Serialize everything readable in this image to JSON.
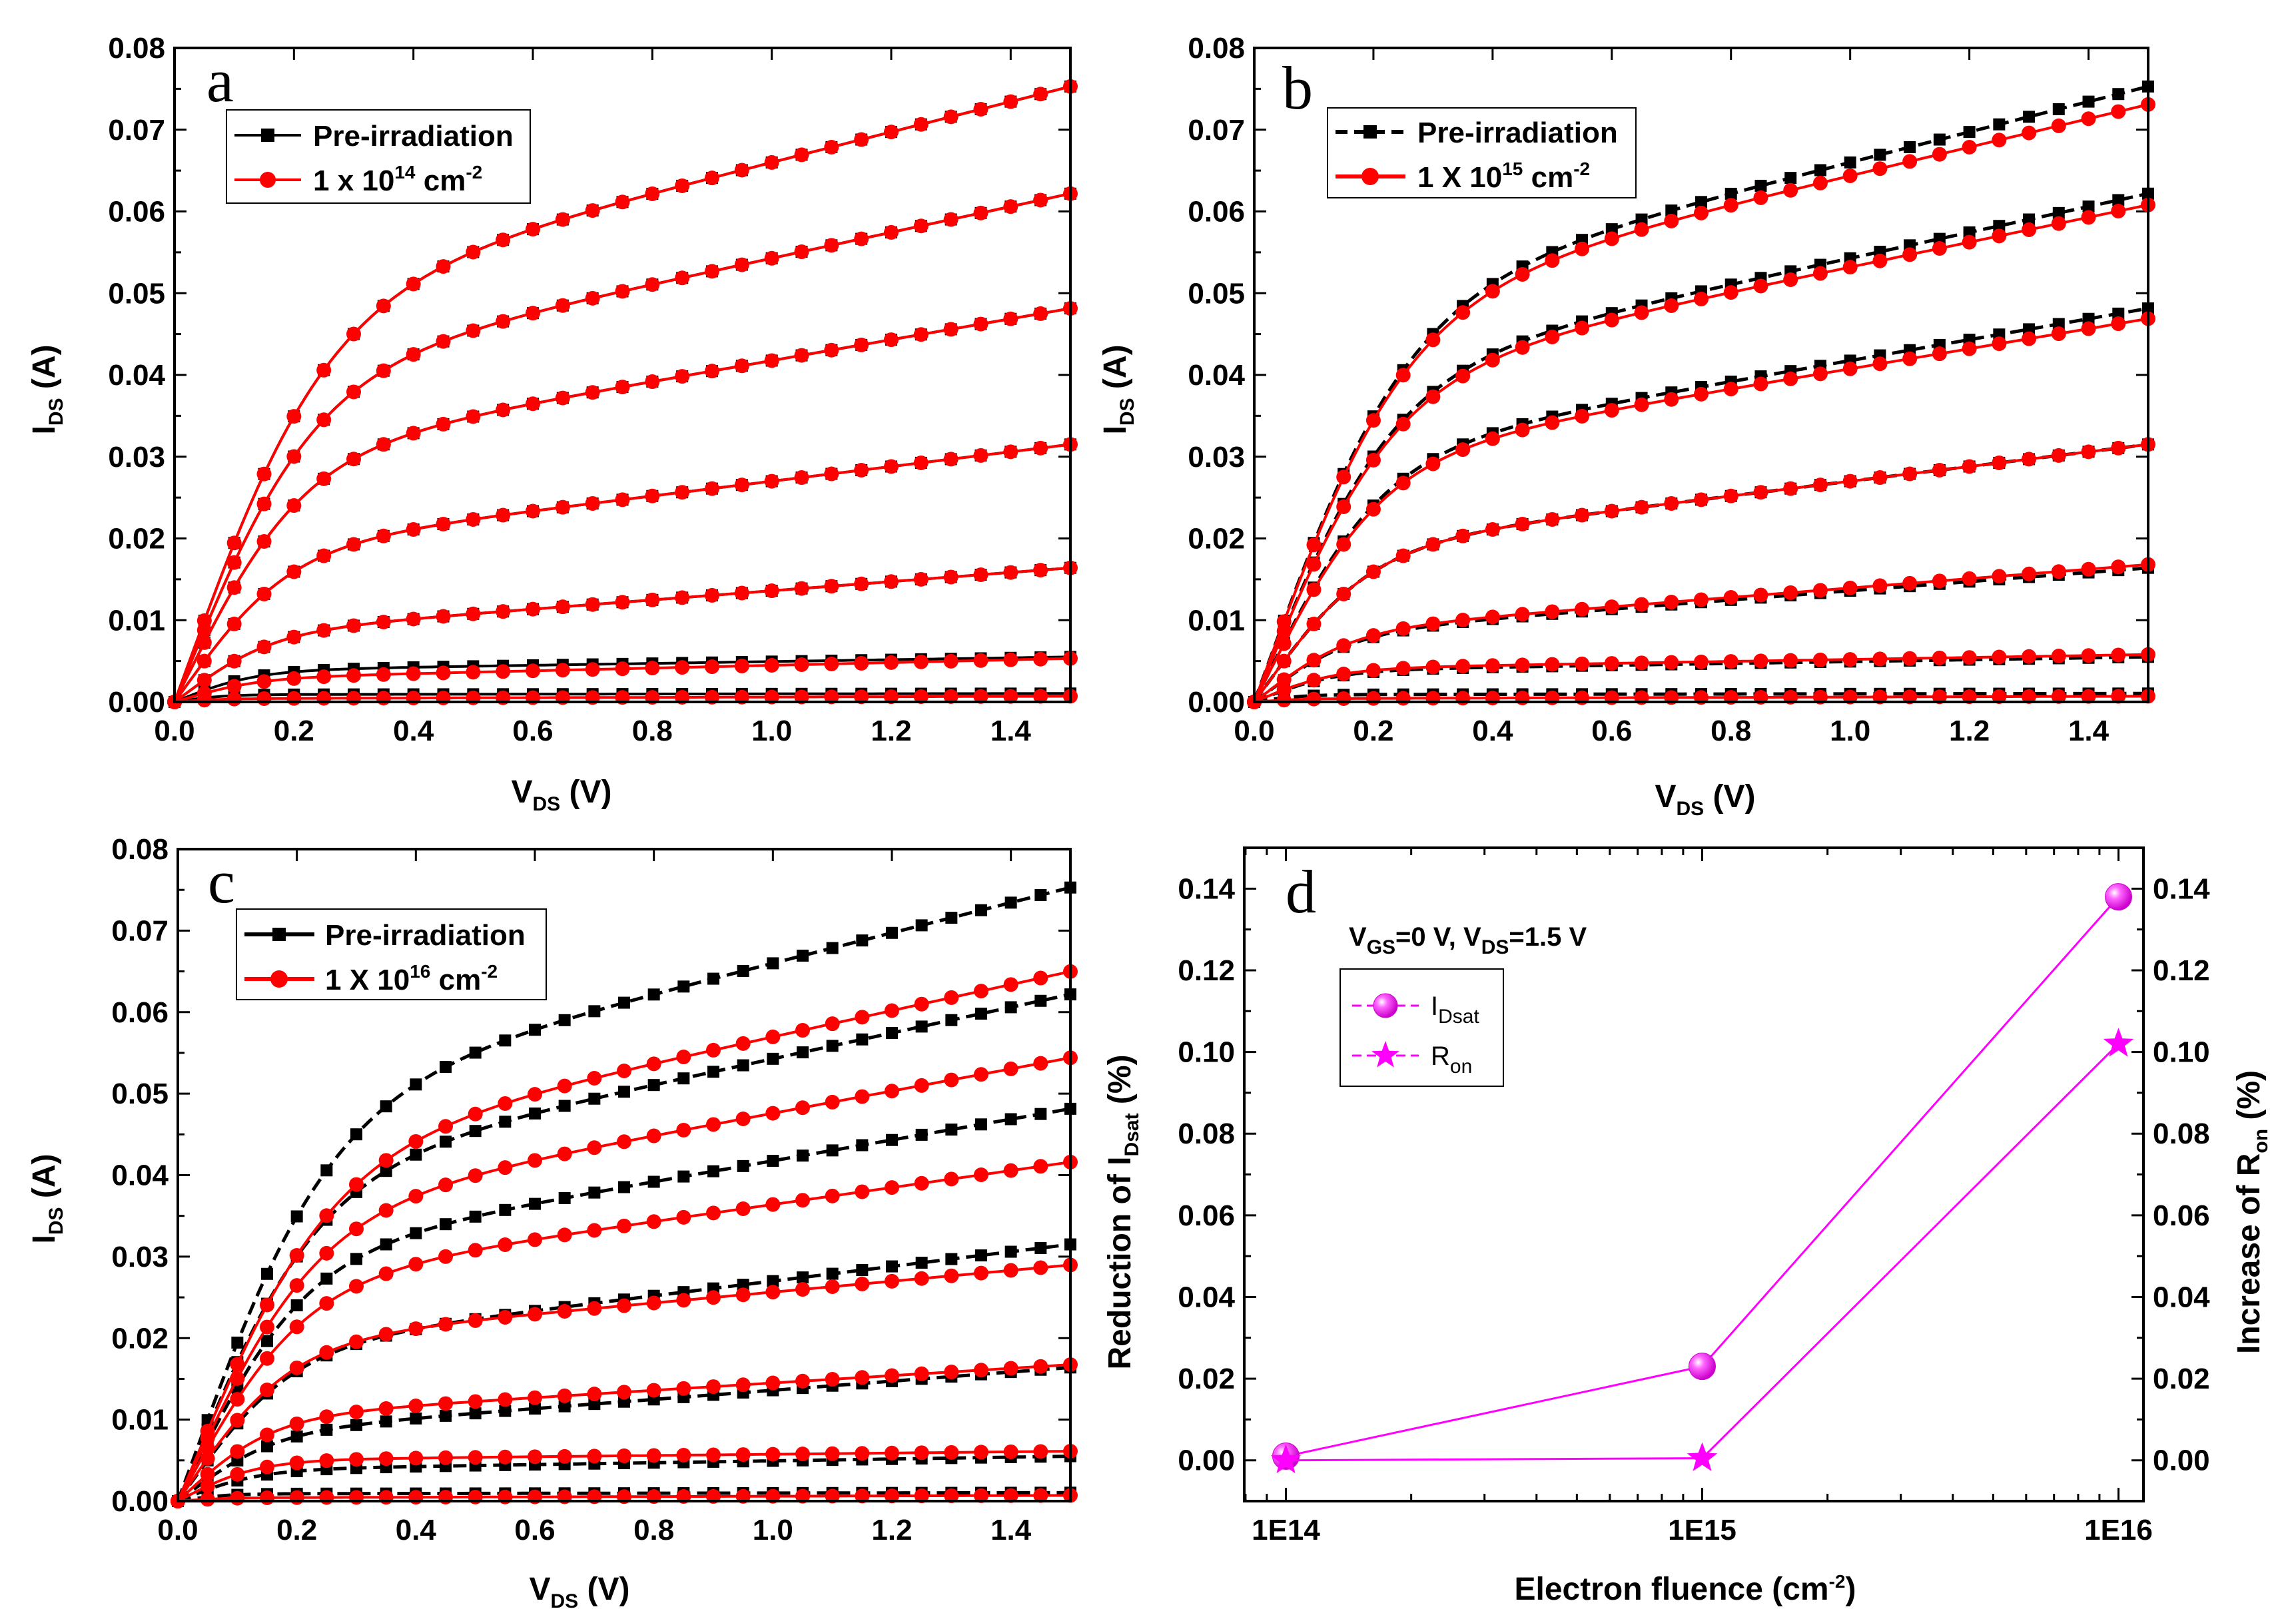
{
  "colors": {
    "pre": "#000000",
    "post": "#ff0000",
    "magenta": "#ff00ff",
    "marker_fill": "#ff33ff"
  },
  "chart_data": [
    {
      "id": "a",
      "type": "line",
      "panel_label": "a",
      "xlabel_main": "V",
      "xlabel_sub": "DS",
      "xlabel_unit": " (V)",
      "ylabel_main": "I",
      "ylabel_sub": "DS",
      "ylabel_unit": " (A)",
      "xlim": [
        0,
        1.5
      ],
      "ylim": [
        0,
        0.08
      ],
      "xticks": [
        "0.0",
        "0.2",
        "0.4",
        "0.6",
        "0.8",
        "1.0",
        "1.2",
        "1.4"
      ],
      "yticks": [
        "0.00",
        "0.01",
        "0.02",
        "0.03",
        "0.04",
        "0.05",
        "0.06",
        "0.07",
        "0.08"
      ],
      "legend": {
        "pre": "Pre-irradiation",
        "post_prefix": "1 x 10",
        "post_exp": "14",
        "post_unit": " cm",
        "post_unit_exp": "-2"
      },
      "legend_position": "top-left",
      "curve_model": "I = Isat*tanh(V/Vk)*(1+lambda*V)",
      "series": [
        {
          "name": "Pre-irradiation",
          "style": "solid",
          "curves": [
            [
              0.0475,
              0.24,
              0.39
            ],
            [
              0.0385,
              0.22,
              0.41
            ],
            [
              0.029,
              0.2,
              0.44
            ],
            [
              0.018,
              0.18,
              0.5
            ],
            [
              0.008,
              0.15,
              0.7
            ],
            [
              0.0038,
              0.13,
              0.3
            ],
            [
              0.0009,
              0.08,
              0.1
            ]
          ]
        },
        {
          "name": "1 x 10^14 cm^-2",
          "style": "solid",
          "curves": [
            [
              0.0475,
              0.24,
              0.39
            ],
            [
              0.0385,
              0.22,
              0.41
            ],
            [
              0.029,
              0.2,
              0.44
            ],
            [
              0.018,
              0.18,
              0.5
            ],
            [
              0.008,
              0.15,
              0.7
            ],
            [
              0.0028,
              0.13,
              0.6
            ],
            [
              0.0004,
              0.08,
              0.5
            ]
          ]
        }
      ]
    },
    {
      "id": "b",
      "type": "line",
      "panel_label": "b",
      "xlabel_main": "V",
      "xlabel_sub": "DS",
      "xlabel_unit": " (V)",
      "ylabel_main": "I",
      "ylabel_sub": "DS",
      "ylabel_unit": " (A)",
      "xlim": [
        0,
        1.5
      ],
      "ylim": [
        0,
        0.08
      ],
      "xticks": [
        "0.0",
        "0.2",
        "0.4",
        "0.6",
        "0.8",
        "1.0",
        "1.2",
        "1.4"
      ],
      "yticks": [
        "0.00",
        "0.01",
        "0.02",
        "0.03",
        "0.04",
        "0.05",
        "0.06",
        "0.07",
        "0.08"
      ],
      "legend": {
        "pre": "Pre-irradiation",
        "post_prefix": "1 X 10",
        "post_exp": "15",
        "post_unit": " cm",
        "post_unit_exp": "-2"
      },
      "legend_position": "top-left",
      "curve_model": "I = Isat*tanh(V/Vk)*(1+lambda*V)",
      "series": [
        {
          "name": "Pre-irradiation",
          "style": "dashed",
          "curves": [
            [
              0.0475,
              0.24,
              0.39
            ],
            [
              0.0385,
              0.22,
              0.41
            ],
            [
              0.029,
              0.2,
              0.44
            ],
            [
              0.018,
              0.18,
              0.5
            ],
            [
              0.008,
              0.15,
              0.7
            ],
            [
              0.0038,
              0.13,
              0.3
            ],
            [
              0.0009,
              0.08,
              0.1
            ]
          ]
        },
        {
          "name": "1 X 10^15 cm^-2",
          "style": "solid",
          "curves": [
            [
              0.047,
              0.24,
              0.37
            ],
            [
              0.038,
              0.22,
              0.4
            ],
            [
              0.0285,
              0.2,
              0.43
            ],
            [
              0.018,
              0.18,
              0.5
            ],
            [
              0.0082,
              0.15,
              0.7
            ],
            [
              0.004,
              0.13,
              0.3
            ],
            [
              0.0004,
              0.08,
              0.5
            ]
          ]
        }
      ]
    },
    {
      "id": "c",
      "type": "line",
      "panel_label": "c",
      "xlabel_main": "V",
      "xlabel_sub": "DS",
      "xlabel_unit": " (V)",
      "ylabel_main": "I",
      "ylabel_sub": "DS",
      "ylabel_unit": " (A)",
      "xlim": [
        0,
        1.5
      ],
      "ylim": [
        0,
        0.08
      ],
      "xticks": [
        "0.0",
        "0.2",
        "0.4",
        "0.6",
        "0.8",
        "1.0",
        "1.2",
        "1.4"
      ],
      "yticks": [
        "0.00",
        "0.01",
        "0.02",
        "0.03",
        "0.04",
        "0.05",
        "0.06",
        "0.07",
        "0.08"
      ],
      "legend": {
        "pre": "Pre-irradiation",
        "post_prefix": "1 X 10",
        "post_exp": "16",
        "post_unit": " cm",
        "post_unit_exp": "-2"
      },
      "legend_position": "top-left",
      "curve_model": "I = Isat*tanh(V/Vk)*(1+lambda*V)",
      "series": [
        {
          "name": "Pre-irradiation",
          "style": "dashed",
          "curves": [
            [
              0.0475,
              0.24,
              0.39
            ],
            [
              0.0385,
              0.22,
              0.41
            ],
            [
              0.029,
              0.2,
              0.44
            ],
            [
              0.018,
              0.18,
              0.5
            ],
            [
              0.008,
              0.15,
              0.7
            ],
            [
              0.0038,
              0.13,
              0.3
            ],
            [
              0.0009,
              0.08,
              0.1
            ]
          ]
        },
        {
          "name": "1 X 10^16 cm^-2",
          "style": "solid",
          "curves": [
            [
              0.041,
              0.24,
              0.39
            ],
            [
              0.034,
              0.22,
              0.4
            ],
            [
              0.026,
              0.2,
              0.4
            ],
            [
              0.019,
              0.18,
              0.35
            ],
            [
              0.01,
              0.15,
              0.45
            ],
            [
              0.005,
              0.13,
              0.15
            ],
            [
              0.0004,
              0.08,
              0.5
            ]
          ]
        }
      ]
    },
    {
      "id": "d",
      "type": "line",
      "panel_label": "d",
      "xscale": "log",
      "xlabel_main": "Electron fluence (cm",
      "xlabel_sup": "-2",
      "xlabel_end": ")",
      "ylabel_left_main": "Reduction of I",
      "ylabel_left_sub": "Dsat",
      "ylabel_left_unit": " (%)",
      "ylabel_right_main": "Increase of R",
      "ylabel_right_sub": "on",
      "ylabel_right_unit": " (%)",
      "ylim": [
        -0.01,
        0.15
      ],
      "xticks": [
        "1E14",
        "1E15",
        "1E16"
      ],
      "yticks": [
        "0.00",
        "0.02",
        "0.04",
        "0.06",
        "0.08",
        "0.10",
        "0.12",
        "0.14"
      ],
      "annotation": {
        "v1": "V",
        "v1_sub": "GS",
        "v1_rest": "=0 V, V",
        "v2_sub": "DS",
        "v2_rest": "=1.5 V"
      },
      "legend_position": "top-left",
      "x": [
        100000000000000.0,
        1000000000000000.0,
        1e+16
      ],
      "series": [
        {
          "name": "I",
          "name_sub": "Dsat",
          "marker": "sphere",
          "values": [
            0.001,
            0.023,
            0.138
          ]
        },
        {
          "name": "R",
          "name_sub": "on",
          "marker": "star",
          "values": [
            0.0,
            0.0005,
            0.102
          ]
        }
      ]
    }
  ]
}
